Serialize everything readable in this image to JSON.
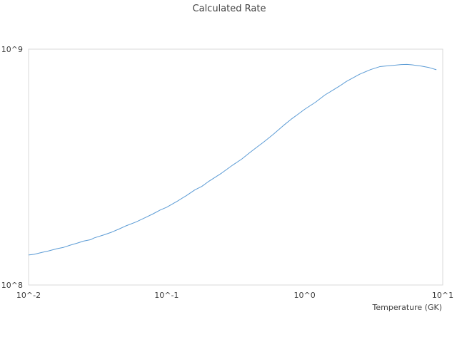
{
  "chart_data": {
    "type": "line",
    "title": "Calculated Rate",
    "xlabel": "Temperature (GK)",
    "ylabel": "",
    "x_scale": "log",
    "y_scale": "log",
    "xlim": [
      0.01,
      10
    ],
    "ylim": [
      100000000,
      1000000000
    ],
    "x_tick_labels": [
      "10^-2",
      "10^-1",
      "10^0",
      "10^1"
    ],
    "y_tick_labels": [
      "10^8",
      "10^9"
    ],
    "grid": false,
    "legend": "none",
    "series": [
      {
        "color": "#5b9bd5",
        "x": [
          0.01,
          0.011,
          0.0125,
          0.014,
          0.016,
          0.018,
          0.02,
          0.0225,
          0.025,
          0.028,
          0.03,
          0.035,
          0.04,
          0.045,
          0.05,
          0.06,
          0.07,
          0.08,
          0.09,
          0.1,
          0.12,
          0.14,
          0.16,
          0.18,
          0.2,
          0.25,
          0.3,
          0.35,
          0.4,
          0.45,
          0.5,
          0.6,
          0.7,
          0.8,
          0.9,
          1.0,
          1.2,
          1.4,
          1.6,
          1.8,
          2.0,
          2.5,
          3.0,
          3.5,
          4.0,
          4.5,
          5.0,
          5.5,
          6.0,
          7.0,
          8.0,
          9.0
        ],
        "values": [
          134000000,
          135000000,
          137500000,
          139500000,
          142500000,
          144500000,
          147500000,
          150500000,
          153500000,
          155500000,
          158500000,
          163000000,
          167500000,
          172500000,
          177500000,
          185000000,
          193000000,
          200500000,
          208000000,
          213500000,
          227000000,
          240000000,
          253000000,
          262000000,
          274000000,
          298000000,
          322000000,
          342000000,
          364000000,
          384000000,
          402000000,
          438000000,
          474000000,
          505000000,
          531000000,
          556000000,
          596000000,
          639000000,
          670000000,
          699000000,
          729000000,
          783000000,
          819000000,
          843000000,
          850000000,
          855000000,
          860000000,
          862000000,
          858000000,
          848000000,
          835000000,
          818000000
        ]
      }
    ]
  }
}
